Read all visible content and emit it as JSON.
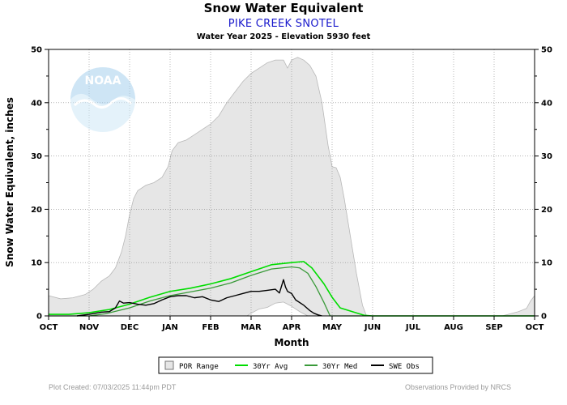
{
  "header": {
    "title": "Snow Water Equivalent",
    "station": "PIKE CREEK SNOTEL",
    "subtitle": "Water Year 2025 -  Elevation 5930 feet"
  },
  "logo": {
    "text": "NOAA",
    "icon": "noaa-logo-icon"
  },
  "footer": {
    "created": "Plot Created: 07/03/2025 11:44pm PDT",
    "provided": "Observations Provided by NRCS"
  },
  "colors": {
    "por": "#e6e6e6",
    "por_edge": "#b8b8b8",
    "avg": "#00dd00",
    "med": "#3a9a3a",
    "obs": "#000000"
  },
  "chart_data": {
    "type": "area",
    "title": "Snow Water Equivalent",
    "xlabel": "Month",
    "ylabel": "Snow Water Equivalent, inches",
    "ylim": [
      0,
      50
    ],
    "yticks": [
      0,
      10,
      20,
      30,
      40,
      50
    ],
    "grid": true,
    "x_unit": "months since Oct 1",
    "xlim": [
      0,
      12
    ],
    "xtick_labels": [
      "OCT",
      "NOV",
      "DEC",
      "JAN",
      "FEB",
      "MAR",
      "APR",
      "MAY",
      "JUN",
      "JUL",
      "AUG",
      "SEP",
      "OCT"
    ],
    "legend": [
      "POR Range",
      "30Yr Avg",
      "30Yr Med",
      "SWE Obs"
    ],
    "series": [
      {
        "name": "POR Range",
        "type": "range",
        "upper": [
          [
            0,
            3.8
          ],
          [
            0.3,
            3.2
          ],
          [
            0.6,
            3.4
          ],
          [
            0.9,
            4.0
          ],
          [
            1.1,
            5.0
          ],
          [
            1.3,
            6.5
          ],
          [
            1.5,
            7.5
          ],
          [
            1.65,
            9.0
          ],
          [
            1.8,
            12
          ],
          [
            1.9,
            15
          ],
          [
            2.0,
            19
          ],
          [
            2.1,
            22
          ],
          [
            2.2,
            23.5
          ],
          [
            2.4,
            24.5
          ],
          [
            2.6,
            25
          ],
          [
            2.8,
            26
          ],
          [
            2.95,
            28
          ],
          [
            3.05,
            31
          ],
          [
            3.2,
            32.5
          ],
          [
            3.4,
            33
          ],
          [
            3.6,
            34
          ],
          [
            3.8,
            35
          ],
          [
            4.0,
            36
          ],
          [
            4.2,
            37.5
          ],
          [
            4.4,
            40
          ],
          [
            4.6,
            42
          ],
          [
            4.8,
            44
          ],
          [
            5.0,
            45.5
          ],
          [
            5.2,
            46.5
          ],
          [
            5.4,
            47.5
          ],
          [
            5.6,
            48
          ],
          [
            5.8,
            48
          ],
          [
            5.9,
            46.5
          ],
          [
            6.0,
            48
          ],
          [
            6.15,
            48.5
          ],
          [
            6.3,
            48
          ],
          [
            6.45,
            47
          ],
          [
            6.6,
            45
          ],
          [
            6.75,
            40
          ],
          [
            6.9,
            32
          ],
          [
            7.0,
            28
          ],
          [
            7.1,
            27.8
          ],
          [
            7.2,
            26
          ],
          [
            7.3,
            22
          ],
          [
            7.45,
            15
          ],
          [
            7.6,
            8
          ],
          [
            7.75,
            2
          ],
          [
            7.85,
            0
          ],
          [
            11.2,
            0
          ],
          [
            11.4,
            0.4
          ],
          [
            11.6,
            0.8
          ],
          [
            11.8,
            1.4
          ],
          [
            11.9,
            2.8
          ],
          [
            12,
            3.8
          ]
        ],
        "lower": [
          [
            0,
            0
          ],
          [
            4.9,
            0
          ],
          [
            5.0,
            0.5
          ],
          [
            5.2,
            1.3
          ],
          [
            5.4,
            1.6
          ],
          [
            5.6,
            2.4
          ],
          [
            5.8,
            2.6
          ],
          [
            6.0,
            1.8
          ],
          [
            6.2,
            0.8
          ],
          [
            6.4,
            0
          ],
          [
            12,
            0
          ]
        ]
      },
      {
        "name": "30Yr Avg",
        "values": [
          [
            0,
            0.3
          ],
          [
            0.5,
            0.3
          ],
          [
            1.0,
            0.6
          ],
          [
            1.5,
            1.2
          ],
          [
            2.0,
            2.2
          ],
          [
            2.5,
            3.5
          ],
          [
            3.0,
            4.6
          ],
          [
            3.5,
            5.2
          ],
          [
            4.0,
            6.0
          ],
          [
            4.5,
            7.0
          ],
          [
            5.0,
            8.3
          ],
          [
            5.5,
            9.6
          ],
          [
            6.0,
            10.0
          ],
          [
            6.3,
            10.2
          ],
          [
            6.5,
            9.0
          ],
          [
            6.8,
            6.0
          ],
          [
            7.0,
            3.5
          ],
          [
            7.2,
            1.5
          ],
          [
            7.5,
            0.8
          ],
          [
            7.8,
            0.1
          ],
          [
            8.0,
            0
          ],
          [
            12,
            0
          ]
        ]
      },
      {
        "name": "30Yr Med",
        "values": [
          [
            0,
            0
          ],
          [
            1.0,
            0
          ],
          [
            1.4,
            0.4
          ],
          [
            2.0,
            1.5
          ],
          [
            2.5,
            2.8
          ],
          [
            3.0,
            3.8
          ],
          [
            3.5,
            4.5
          ],
          [
            4.0,
            5.2
          ],
          [
            4.5,
            6.2
          ],
          [
            5.0,
            7.6
          ],
          [
            5.5,
            8.8
          ],
          [
            6.0,
            9.2
          ],
          [
            6.2,
            9.0
          ],
          [
            6.4,
            8.0
          ],
          [
            6.6,
            5.5
          ],
          [
            6.8,
            2.5
          ],
          [
            6.95,
            0
          ],
          [
            12,
            0
          ]
        ]
      },
      {
        "name": "SWE Obs",
        "values": [
          [
            0.7,
            0
          ],
          [
            1.0,
            0.3
          ],
          [
            1.3,
            0.7
          ],
          [
            1.5,
            0.8
          ],
          [
            1.65,
            1.5
          ],
          [
            1.75,
            2.8
          ],
          [
            1.85,
            2.4
          ],
          [
            2.0,
            2.5
          ],
          [
            2.2,
            2.2
          ],
          [
            2.4,
            2.0
          ],
          [
            2.6,
            2.3
          ],
          [
            2.8,
            3.0
          ],
          [
            3.0,
            3.6
          ],
          [
            3.2,
            3.8
          ],
          [
            3.4,
            3.8
          ],
          [
            3.6,
            3.4
          ],
          [
            3.8,
            3.6
          ],
          [
            4.0,
            3.0
          ],
          [
            4.2,
            2.7
          ],
          [
            4.4,
            3.4
          ],
          [
            4.6,
            3.8
          ],
          [
            4.8,
            4.2
          ],
          [
            5.0,
            4.6
          ],
          [
            5.2,
            4.6
          ],
          [
            5.4,
            4.8
          ],
          [
            5.6,
            5.0
          ],
          [
            5.7,
            4.3
          ],
          [
            5.8,
            6.8
          ],
          [
            5.85,
            5.4
          ],
          [
            5.9,
            4.6
          ],
          [
            6.0,
            4.2
          ],
          [
            6.1,
            3.0
          ],
          [
            6.3,
            2.0
          ],
          [
            6.45,
            1.0
          ],
          [
            6.55,
            0.5
          ],
          [
            6.65,
            0.2
          ],
          [
            6.75,
            0
          ]
        ]
      }
    ]
  }
}
